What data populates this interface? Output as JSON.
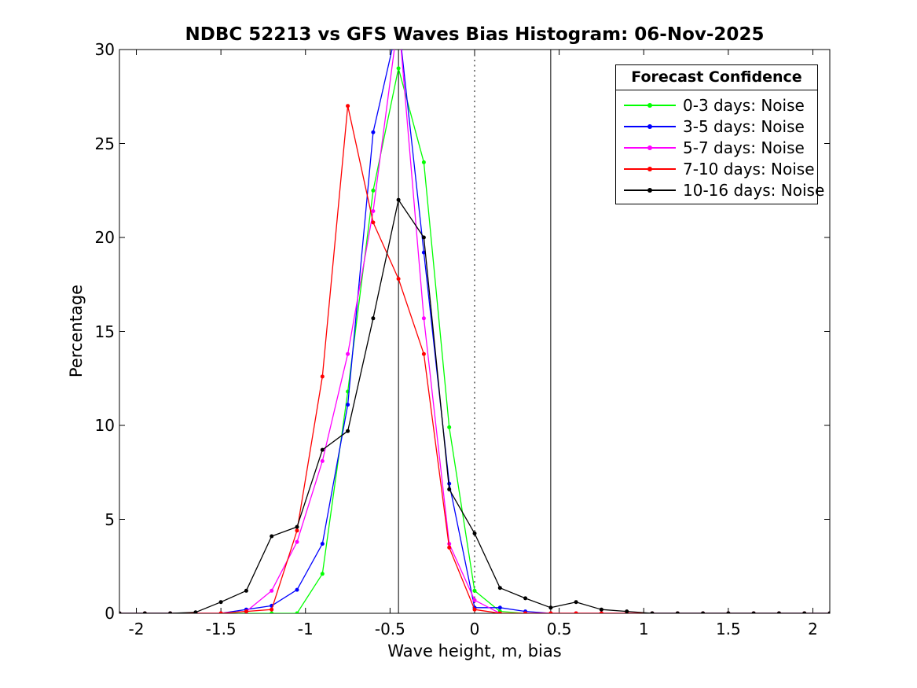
{
  "chart_data": {
    "type": "line",
    "title": "NDBC 52213 vs GFS Waves Bias Histogram: 06-Nov-2025",
    "xlabel": "Wave height, m, bias",
    "ylabel": "Percentage",
    "xlim": [
      -2.1,
      2.1
    ],
    "ylim": [
      0,
      30
    ],
    "xticks": [
      -2,
      -1.5,
      -1,
      -0.5,
      0,
      0.5,
      1,
      1.5,
      2
    ],
    "xtick_labels": [
      "-2",
      "-1.5",
      "-1",
      "-0.5",
      "0",
      "0.5",
      "1",
      "1.5",
      "2"
    ],
    "yticks": [
      0,
      5,
      10,
      15,
      20,
      25,
      30
    ],
    "ytick_labels": [
      "0",
      "5",
      "10",
      "15",
      "20",
      "25",
      "30"
    ],
    "grid": false,
    "marker": "dot",
    "x": [
      -2.1,
      -1.95,
      -1.8,
      -1.65,
      -1.5,
      -1.35,
      -1.2,
      -1.05,
      -0.9,
      -0.75,
      -0.6,
      -0.45,
      -0.3,
      -0.15,
      0,
      0.15,
      0.3,
      0.45,
      0.6,
      0.75,
      0.9,
      1.05,
      1.2,
      1.35,
      1.5,
      1.65,
      1.8,
      1.95,
      2.1
    ],
    "series": [
      {
        "name": "0-3 days: Noise",
        "color": "#00ff00",
        "values": [
          0,
          0,
          0,
          0,
          0,
          0,
          0,
          0,
          2.1,
          11.8,
          22.5,
          29,
          24,
          9.9,
          1.2,
          0.1,
          0,
          0,
          0,
          0,
          0,
          0,
          0,
          0,
          0,
          0,
          0,
          0,
          0
        ]
      },
      {
        "name": "3-5 days: Noise",
        "color": "#0000ff",
        "values": [
          0,
          0,
          0,
          0,
          0,
          0.2,
          0.4,
          1.25,
          3.7,
          11.1,
          25.6,
          31.5,
          19.2,
          6.9,
          0.3,
          0.3,
          0.1,
          0,
          0,
          0,
          0,
          0,
          0,
          0,
          0,
          0,
          0,
          0,
          0
        ]
      },
      {
        "name": "5-7 days: Noise",
        "color": "#ff00ff",
        "values": [
          0,
          0,
          0,
          0,
          0,
          0.1,
          1.2,
          3.8,
          8.1,
          13.8,
          21.4,
          31.7,
          15.7,
          3.7,
          0.7,
          0,
          0,
          0,
          0,
          0,
          0,
          0,
          0,
          0,
          0,
          0,
          0,
          0,
          0
        ]
      },
      {
        "name": "7-10 days: Noise",
        "color": "#ff0000",
        "values": [
          0,
          0,
          0,
          0,
          0,
          0.1,
          0.2,
          4.4,
          12.6,
          27,
          20.8,
          17.8,
          13.8,
          3.5,
          0.2,
          0,
          0,
          0,
          0,
          0,
          0,
          0,
          0,
          0,
          0,
          0,
          0,
          0,
          0
        ]
      },
      {
        "name": "10-16 days: Noise",
        "color": "#000000",
        "values": [
          0,
          0,
          0,
          0.05,
          0.6,
          1.2,
          4.1,
          4.6,
          8.7,
          9.7,
          15.7,
          22,
          20,
          6.6,
          4.25,
          1.35,
          0.8,
          0.3,
          0.6,
          0.2,
          0.1,
          0,
          0,
          0,
          0,
          0,
          0,
          0,
          0
        ]
      }
    ],
    "reference_lines": [
      {
        "x": -0.45,
        "style": "solid",
        "color": "#000000"
      },
      {
        "x": 0,
        "style": "dotted",
        "color": "#000000"
      },
      {
        "x": 0.45,
        "style": "solid",
        "color": "#000000"
      }
    ],
    "legend": {
      "title": "Forecast Confidence",
      "position": "top-right"
    },
    "axis_color": "#000000",
    "background_color": "#ffffff"
  }
}
